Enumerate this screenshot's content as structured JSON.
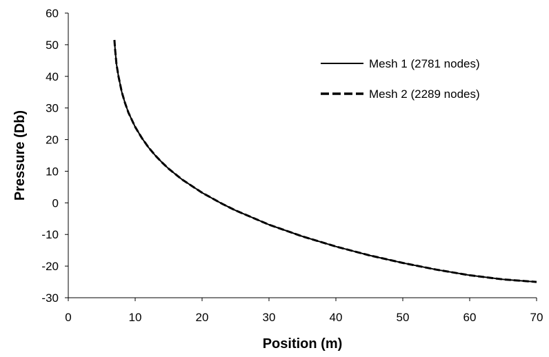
{
  "chart_data": {
    "type": "line",
    "title": "",
    "xlabel": "Position (m)",
    "ylabel": "Pressure (Db)",
    "xlim": [
      0,
      70
    ],
    "ylim": [
      -30,
      60
    ],
    "xticks": [
      "0",
      "10",
      "20",
      "30",
      "40",
      "50",
      "60",
      "70"
    ],
    "yticks": [
      "60",
      "50",
      "40",
      "30",
      "20",
      "10",
      "0",
      "-10",
      "-20",
      "-30"
    ],
    "grid": false,
    "legend_position": "top-right",
    "series": [
      {
        "name": "Mesh 1 (2781 nodes)",
        "style": "solid",
        "color": "#000000",
        "x": [
          6.9,
          7.0,
          7.2,
          7.5,
          8.0,
          8.5,
          9.0,
          10,
          11,
          12,
          13,
          14,
          15,
          17,
          20,
          23,
          25,
          30,
          35,
          40,
          45,
          50,
          55,
          60,
          65,
          70
        ],
        "y": [
          51.5,
          48.5,
          44.0,
          40.0,
          35.0,
          31.5,
          28.5,
          24.0,
          20.5,
          17.5,
          15.0,
          12.8,
          10.8,
          7.4,
          3.2,
          -0.3,
          -2.4,
          -6.9,
          -10.6,
          -13.8,
          -16.6,
          -19.0,
          -21.1,
          -22.9,
          -24.2,
          -25.0
        ]
      },
      {
        "name": "Mesh 2 (2289 nodes)",
        "style": "dashed",
        "color": "#000000",
        "x": [
          6.9,
          7.0,
          7.2,
          7.5,
          8.0,
          8.5,
          9.0,
          10,
          11,
          12,
          13,
          14,
          15,
          17,
          20,
          23,
          25,
          30,
          35,
          40,
          45,
          50,
          55,
          60,
          65,
          70
        ],
        "y": [
          51.5,
          48.5,
          44.0,
          40.0,
          35.0,
          31.5,
          28.5,
          24.0,
          20.5,
          17.5,
          15.0,
          12.8,
          10.8,
          7.4,
          3.2,
          -0.3,
          -2.4,
          -6.9,
          -10.6,
          -13.8,
          -16.6,
          -19.0,
          -21.1,
          -22.9,
          -24.2,
          -25.0
        ]
      }
    ]
  }
}
